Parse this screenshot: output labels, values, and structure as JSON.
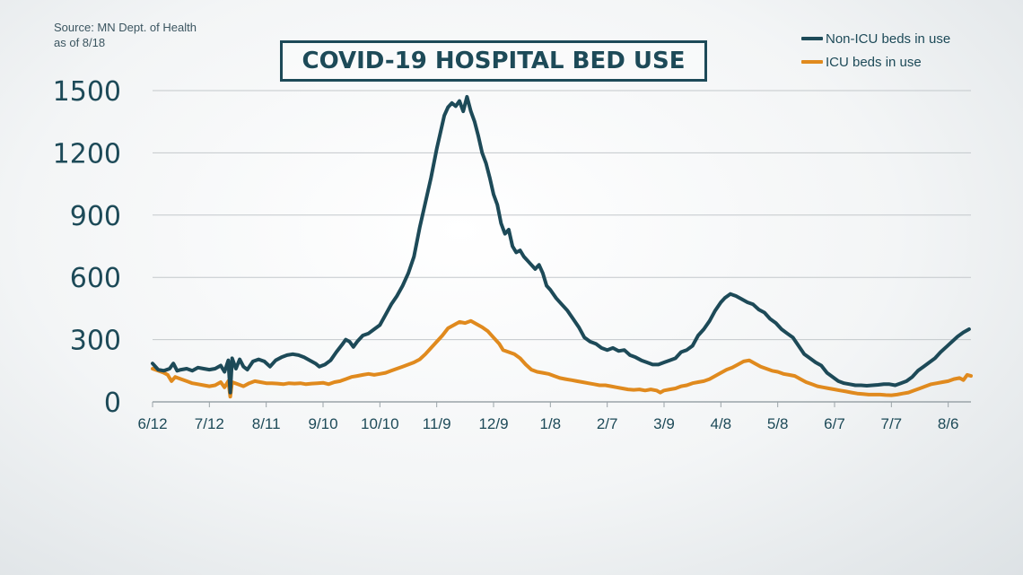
{
  "source": {
    "line1": "Source: MN Dept. of Health",
    "line2": "as of 8/18"
  },
  "colors": {
    "non_icu": "#1d4a58",
    "icu": "#e08a1e",
    "grid": "#c3c8cb",
    "text": "#1d4a58"
  },
  "chart_data": {
    "type": "line",
    "title": "COVID-19 HOSPITAL BED USE",
    "xlabel": "",
    "ylabel": "",
    "ylim": [
      0,
      1500
    ],
    "yticks": [
      0,
      300,
      600,
      900,
      1200,
      1500
    ],
    "grid": true,
    "legend_position": "top-right",
    "x_tick_labels": [
      "6/12",
      "7/12",
      "8/11",
      "9/10",
      "10/10",
      "11/9",
      "12/9",
      "1/8",
      "2/7",
      "3/9",
      "4/8",
      "5/8",
      "6/7",
      "7/7",
      "8/6"
    ],
    "x_tick_days": [
      0,
      30,
      60,
      90,
      120,
      150,
      180,
      210,
      240,
      270,
      300,
      330,
      360,
      390,
      420
    ],
    "x_range_days": [
      0,
      432
    ],
    "series": [
      {
        "name": "Non-ICU beds in use",
        "color": "#1d4a58",
        "points": [
          [
            0,
            185
          ],
          [
            3,
            155
          ],
          [
            6,
            150
          ],
          [
            9,
            160
          ],
          [
            11,
            185
          ],
          [
            13,
            150
          ],
          [
            15,
            155
          ],
          [
            18,
            160
          ],
          [
            21,
            150
          ],
          [
            24,
            165
          ],
          [
            27,
            160
          ],
          [
            30,
            155
          ],
          [
            33,
            160
          ],
          [
            36,
            175
          ],
          [
            38,
            145
          ],
          [
            40,
            200
          ],
          [
            41,
            45
          ],
          [
            42,
            210
          ],
          [
            44,
            160
          ],
          [
            46,
            205
          ],
          [
            48,
            170
          ],
          [
            50,
            155
          ],
          [
            53,
            195
          ],
          [
            56,
            205
          ],
          [
            59,
            195
          ],
          [
            62,
            170
          ],
          [
            65,
            200
          ],
          [
            68,
            215
          ],
          [
            71,
            225
          ],
          [
            74,
            230
          ],
          [
            77,
            225
          ],
          [
            80,
            215
          ],
          [
            83,
            200
          ],
          [
            86,
            185
          ],
          [
            88,
            170
          ],
          [
            91,
            180
          ],
          [
            94,
            200
          ],
          [
            97,
            240
          ],
          [
            100,
            275
          ],
          [
            102,
            300
          ],
          [
            104,
            290
          ],
          [
            106,
            265
          ],
          [
            108,
            290
          ],
          [
            111,
            320
          ],
          [
            114,
            330
          ],
          [
            117,
            350
          ],
          [
            120,
            370
          ],
          [
            123,
            420
          ],
          [
            126,
            470
          ],
          [
            129,
            510
          ],
          [
            132,
            560
          ],
          [
            135,
            620
          ],
          [
            138,
            700
          ],
          [
            141,
            840
          ],
          [
            144,
            960
          ],
          [
            147,
            1080
          ],
          [
            150,
            1220
          ],
          [
            152,
            1300
          ],
          [
            154,
            1380
          ],
          [
            156,
            1420
          ],
          [
            158,
            1440
          ],
          [
            160,
            1425
          ],
          [
            162,
            1450
          ],
          [
            164,
            1400
          ],
          [
            166,
            1470
          ],
          [
            168,
            1400
          ],
          [
            170,
            1350
          ],
          [
            172,
            1280
          ],
          [
            174,
            1200
          ],
          [
            176,
            1150
          ],
          [
            178,
            1080
          ],
          [
            180,
            1000
          ],
          [
            182,
            950
          ],
          [
            184,
            860
          ],
          [
            186,
            810
          ],
          [
            188,
            830
          ],
          [
            190,
            750
          ],
          [
            192,
            720
          ],
          [
            194,
            730
          ],
          [
            196,
            700
          ],
          [
            198,
            680
          ],
          [
            200,
            660
          ],
          [
            202,
            640
          ],
          [
            204,
            660
          ],
          [
            206,
            620
          ],
          [
            208,
            560
          ],
          [
            210,
            540
          ],
          [
            213,
            500
          ],
          [
            216,
            470
          ],
          [
            219,
            440
          ],
          [
            222,
            400
          ],
          [
            225,
            360
          ],
          [
            228,
            310
          ],
          [
            231,
            290
          ],
          [
            234,
            280
          ],
          [
            237,
            260
          ],
          [
            240,
            250
          ],
          [
            243,
            260
          ],
          [
            246,
            245
          ],
          [
            249,
            250
          ],
          [
            252,
            225
          ],
          [
            255,
            215
          ],
          [
            258,
            200
          ],
          [
            261,
            190
          ],
          [
            264,
            180
          ],
          [
            267,
            180
          ],
          [
            270,
            190
          ],
          [
            273,
            200
          ],
          [
            276,
            210
          ],
          [
            279,
            240
          ],
          [
            282,
            250
          ],
          [
            285,
            270
          ],
          [
            288,
            320
          ],
          [
            291,
            350
          ],
          [
            294,
            390
          ],
          [
            297,
            440
          ],
          [
            300,
            480
          ],
          [
            302,
            500
          ],
          [
            305,
            520
          ],
          [
            308,
            510
          ],
          [
            311,
            495
          ],
          [
            314,
            480
          ],
          [
            317,
            470
          ],
          [
            320,
            445
          ],
          [
            323,
            430
          ],
          [
            326,
            400
          ],
          [
            329,
            380
          ],
          [
            332,
            350
          ],
          [
            335,
            330
          ],
          [
            338,
            310
          ],
          [
            341,
            270
          ],
          [
            344,
            230
          ],
          [
            347,
            210
          ],
          [
            350,
            190
          ],
          [
            353,
            175
          ],
          [
            356,
            140
          ],
          [
            359,
            120
          ],
          [
            362,
            100
          ],
          [
            365,
            90
          ],
          [
            368,
            85
          ],
          [
            371,
            80
          ],
          [
            374,
            80
          ],
          [
            377,
            78
          ],
          [
            380,
            80
          ],
          [
            383,
            82
          ],
          [
            386,
            85
          ],
          [
            389,
            85
          ],
          [
            392,
            80
          ],
          [
            395,
            90
          ],
          [
            398,
            100
          ],
          [
            401,
            120
          ],
          [
            404,
            150
          ],
          [
            407,
            170
          ],
          [
            410,
            190
          ],
          [
            413,
            210
          ],
          [
            416,
            240
          ],
          [
            419,
            265
          ],
          [
            422,
            290
          ],
          [
            425,
            315
          ],
          [
            428,
            335
          ],
          [
            431,
            350
          ]
        ]
      },
      {
        "name": "ICU beds in use",
        "color": "#e08a1e",
        "points": [
          [
            0,
            160
          ],
          [
            3,
            150
          ],
          [
            6,
            140
          ],
          [
            8,
            130
          ],
          [
            10,
            100
          ],
          [
            12,
            120
          ],
          [
            15,
            110
          ],
          [
            18,
            100
          ],
          [
            21,
            90
          ],
          [
            24,
            85
          ],
          [
            27,
            80
          ],
          [
            30,
            75
          ],
          [
            33,
            80
          ],
          [
            36,
            95
          ],
          [
            38,
            70
          ],
          [
            40,
            100
          ],
          [
            41,
            25
          ],
          [
            42,
            95
          ],
          [
            45,
            85
          ],
          [
            48,
            75
          ],
          [
            51,
            90
          ],
          [
            54,
            100
          ],
          [
            57,
            95
          ],
          [
            60,
            90
          ],
          [
            63,
            90
          ],
          [
            66,
            88
          ],
          [
            69,
            85
          ],
          [
            72,
            90
          ],
          [
            75,
            88
          ],
          [
            78,
            90
          ],
          [
            81,
            85
          ],
          [
            84,
            88
          ],
          [
            87,
            90
          ],
          [
            90,
            92
          ],
          [
            93,
            85
          ],
          [
            96,
            95
          ],
          [
            99,
            100
          ],
          [
            102,
            110
          ],
          [
            105,
            120
          ],
          [
            108,
            125
          ],
          [
            111,
            130
          ],
          [
            114,
            135
          ],
          [
            117,
            130
          ],
          [
            120,
            135
          ],
          [
            123,
            140
          ],
          [
            126,
            150
          ],
          [
            129,
            160
          ],
          [
            132,
            170
          ],
          [
            135,
            180
          ],
          [
            138,
            190
          ],
          [
            141,
            205
          ],
          [
            144,
            230
          ],
          [
            147,
            260
          ],
          [
            150,
            290
          ],
          [
            153,
            320
          ],
          [
            156,
            355
          ],
          [
            159,
            370
          ],
          [
            162,
            385
          ],
          [
            165,
            380
          ],
          [
            168,
            390
          ],
          [
            171,
            375
          ],
          [
            174,
            360
          ],
          [
            177,
            340
          ],
          [
            180,
            310
          ],
          [
            183,
            280
          ],
          [
            185,
            250
          ],
          [
            188,
            240
          ],
          [
            191,
            230
          ],
          [
            194,
            210
          ],
          [
            197,
            180
          ],
          [
            200,
            155
          ],
          [
            203,
            145
          ],
          [
            206,
            140
          ],
          [
            209,
            135
          ],
          [
            212,
            125
          ],
          [
            215,
            115
          ],
          [
            218,
            110
          ],
          [
            221,
            105
          ],
          [
            224,
            100
          ],
          [
            227,
            95
          ],
          [
            230,
            90
          ],
          [
            233,
            85
          ],
          [
            236,
            80
          ],
          [
            239,
            80
          ],
          [
            242,
            75
          ],
          [
            245,
            70
          ],
          [
            248,
            65
          ],
          [
            251,
            60
          ],
          [
            254,
            58
          ],
          [
            257,
            60
          ],
          [
            260,
            55
          ],
          [
            263,
            60
          ],
          [
            266,
            55
          ],
          [
            268,
            45
          ],
          [
            270,
            55
          ],
          [
            273,
            60
          ],
          [
            276,
            65
          ],
          [
            279,
            75
          ],
          [
            282,
            80
          ],
          [
            285,
            90
          ],
          [
            288,
            95
          ],
          [
            291,
            100
          ],
          [
            294,
            110
          ],
          [
            297,
            125
          ],
          [
            300,
            140
          ],
          [
            303,
            155
          ],
          [
            306,
            165
          ],
          [
            309,
            180
          ],
          [
            312,
            195
          ],
          [
            315,
            200
          ],
          [
            318,
            185
          ],
          [
            321,
            170
          ],
          [
            324,
            160
          ],
          [
            327,
            150
          ],
          [
            330,
            145
          ],
          [
            333,
            135
          ],
          [
            336,
            130
          ],
          [
            339,
            125
          ],
          [
            342,
            110
          ],
          [
            345,
            95
          ],
          [
            348,
            85
          ],
          [
            351,
            75
          ],
          [
            354,
            70
          ],
          [
            357,
            65
          ],
          [
            360,
            60
          ],
          [
            363,
            55
          ],
          [
            366,
            50
          ],
          [
            369,
            45
          ],
          [
            372,
            40
          ],
          [
            375,
            38
          ],
          [
            378,
            35
          ],
          [
            381,
            35
          ],
          [
            384,
            35
          ],
          [
            387,
            33
          ],
          [
            390,
            32
          ],
          [
            393,
            35
          ],
          [
            396,
            40
          ],
          [
            399,
            45
          ],
          [
            402,
            55
          ],
          [
            405,
            65
          ],
          [
            408,
            75
          ],
          [
            411,
            85
          ],
          [
            414,
            90
          ],
          [
            417,
            95
          ],
          [
            420,
            100
          ],
          [
            423,
            110
          ],
          [
            426,
            115
          ],
          [
            428,
            105
          ],
          [
            430,
            130
          ],
          [
            432,
            125
          ]
        ]
      }
    ]
  }
}
